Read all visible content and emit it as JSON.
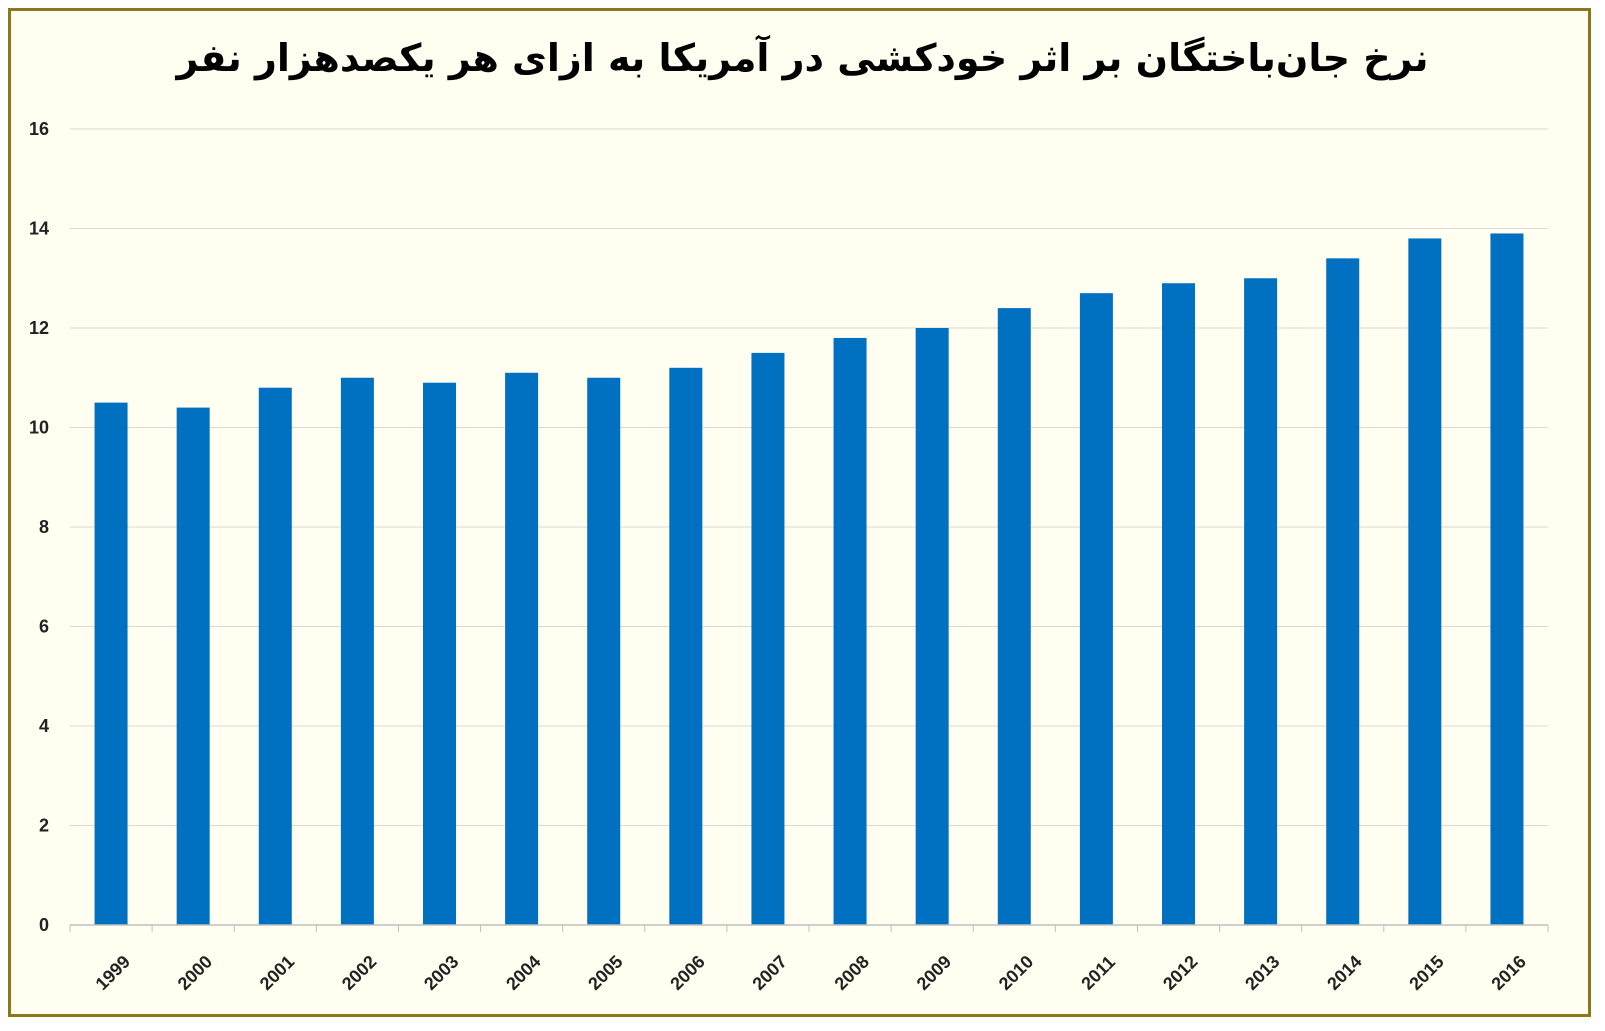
{
  "chart_data": {
    "type": "bar",
    "title": "نرخ جان‌باختگان بر اثر خودکشی در آمریکا به ازای هر یکصدهزار نفر",
    "categories": [
      "1999",
      "2000",
      "2001",
      "2002",
      "2003",
      "2004",
      "2005",
      "2006",
      "2007",
      "2008",
      "2009",
      "2010",
      "2011",
      "2012",
      "2013",
      "2014",
      "2015",
      "2016"
    ],
    "series": [
      {
        "values": [
          10.5,
          10.4,
          10.8,
          11.0,
          10.9,
          11.1,
          11.0,
          11.2,
          11.5,
          11.8,
          12.0,
          12.4,
          12.7,
          12.9,
          13.0,
          13.4,
          13.8,
          13.9
        ]
      }
    ],
    "xlabel": "",
    "ylabel": "",
    "ylim": [
      0,
      16
    ],
    "yticks": [
      "0",
      "2",
      "4",
      "6",
      "8",
      "10",
      "12",
      "14",
      "16"
    ],
    "grid": true,
    "legend": "none",
    "colors": {
      "bar": "#0070c0",
      "grid": "#d9d9d9",
      "axis": "#bfbfbf",
      "frame_border": "#8c7818",
      "background": "#fffef0"
    }
  }
}
